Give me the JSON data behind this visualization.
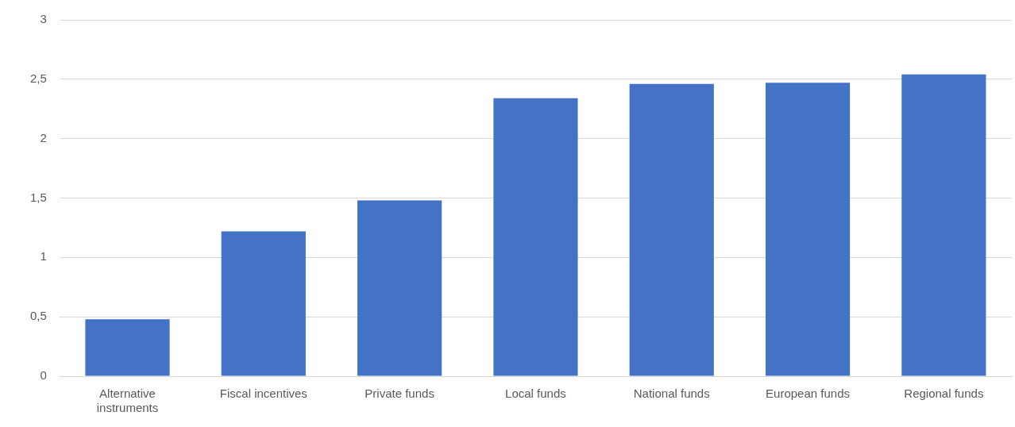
{
  "chart_data": {
    "type": "bar",
    "categories": [
      "Alternative instruments",
      "Fiscal incentives",
      "Private funds",
      "Local funds",
      "National funds",
      "European funds",
      "Regional funds"
    ],
    "values": [
      0.48,
      1.22,
      1.48,
      2.34,
      2.46,
      2.47,
      2.54
    ],
    "color": "#4472c4",
    "ylim": [
      0,
      3
    ],
    "yticks": [
      {
        "value": 0,
        "label": "0"
      },
      {
        "value": 0.5,
        "label": "0,5"
      },
      {
        "value": 1,
        "label": "1"
      },
      {
        "value": 1.5,
        "label": "1,5"
      },
      {
        "value": 2,
        "label": "2"
      },
      {
        "value": 2.5,
        "label": "2,5"
      },
      {
        "value": 3,
        "label": "3"
      }
    ],
    "grid": "y"
  }
}
